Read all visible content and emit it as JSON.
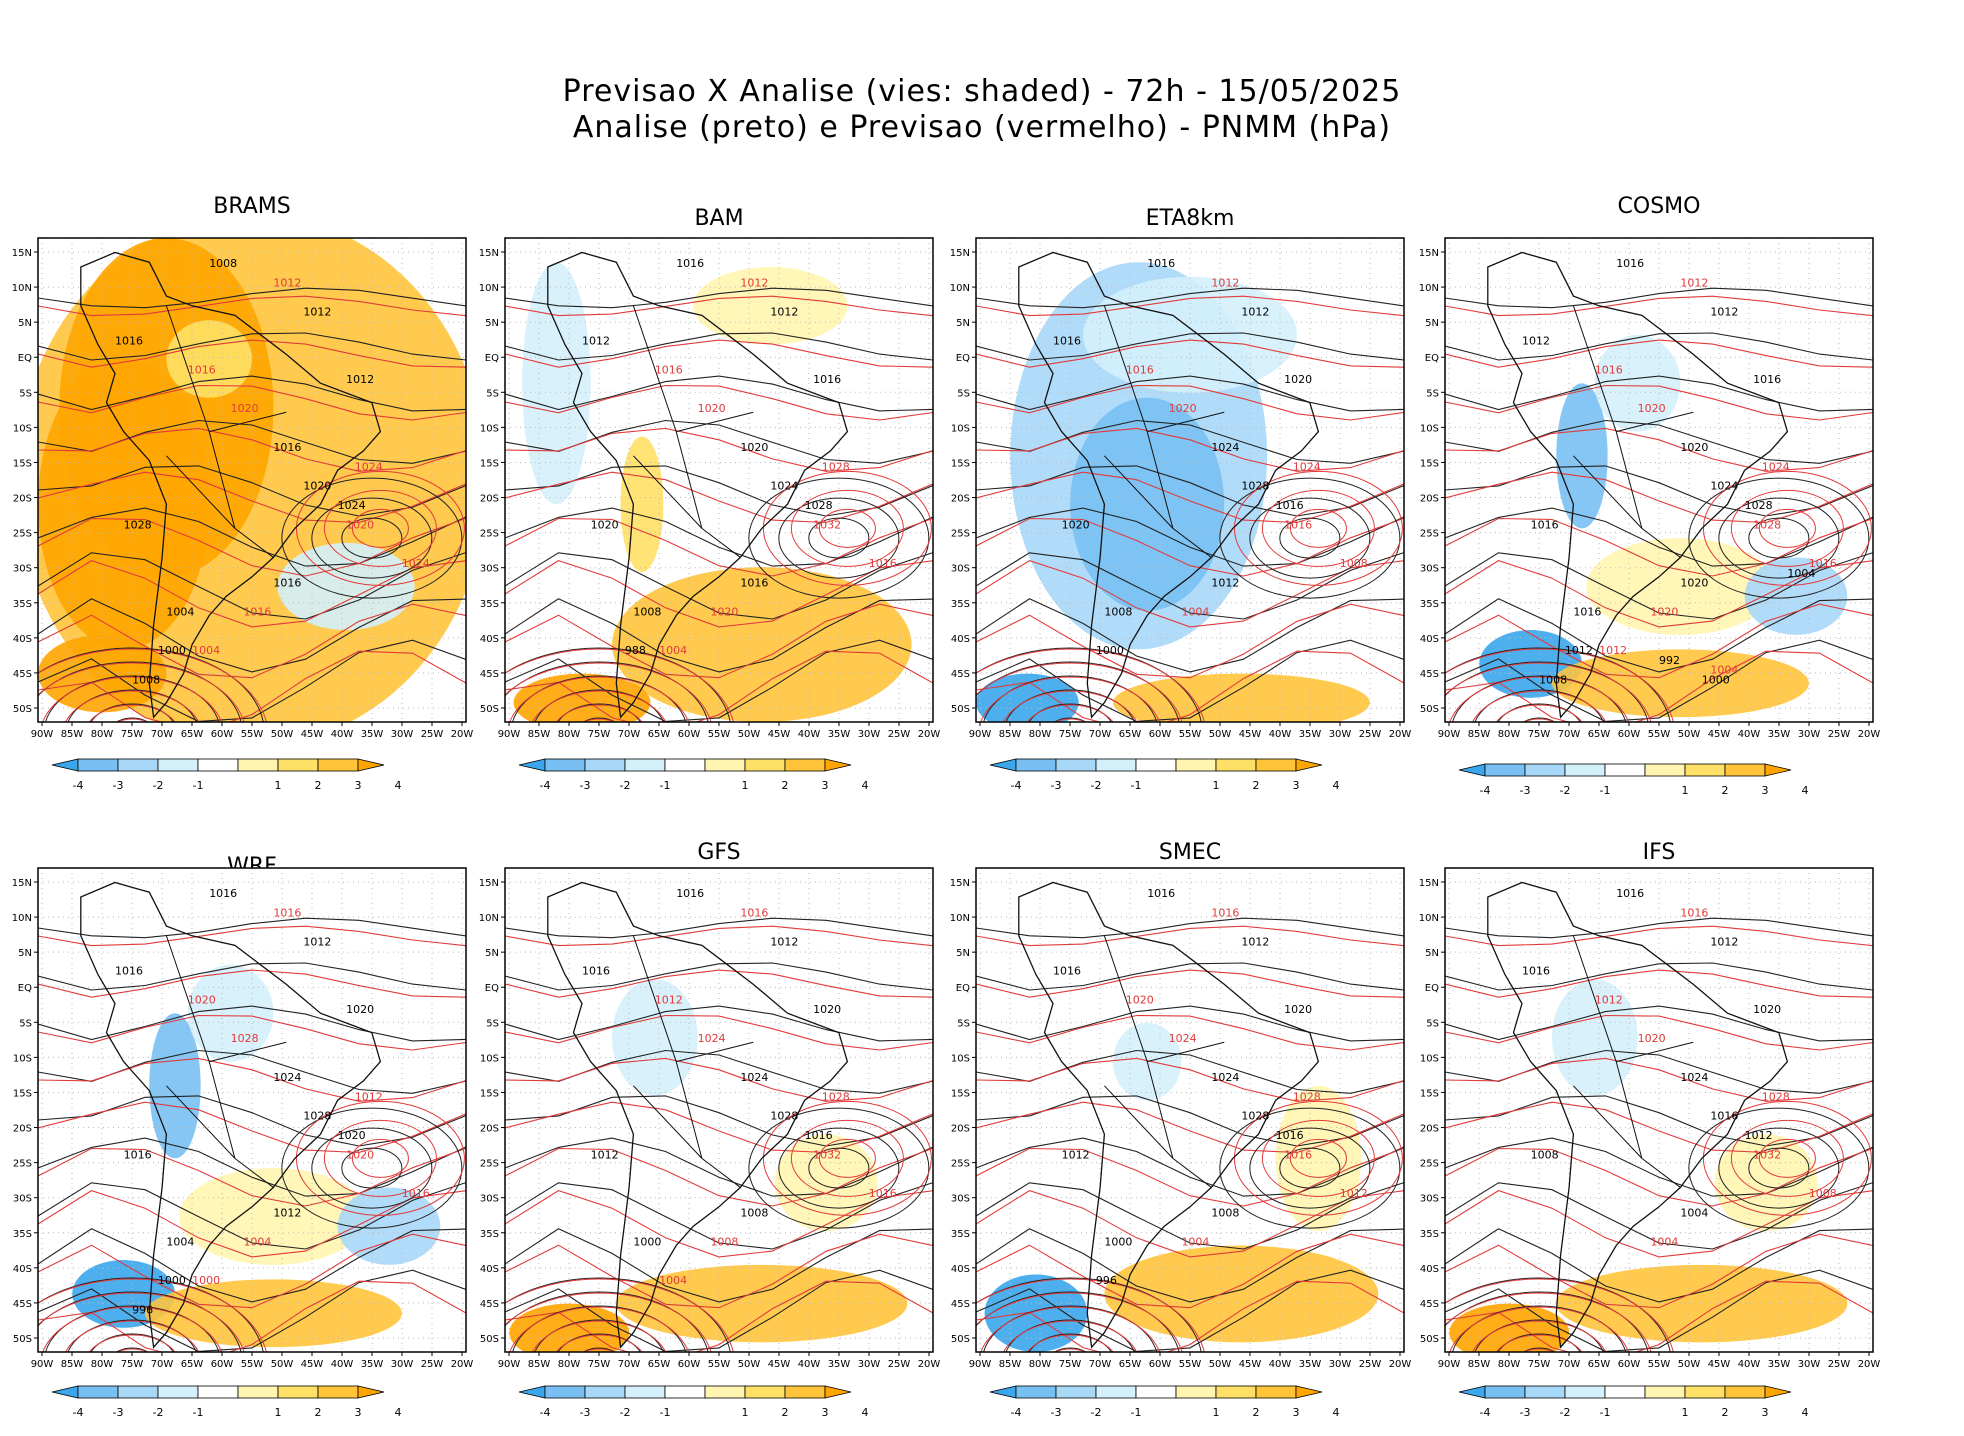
{
  "header": {
    "title_line1": "Previsao X Analise (vies: shaded) - 72h - 15/05/2025",
    "title_line2": "Analise (preto) e Previsao (vermelho) - PNMM (hPa)"
  },
  "axes": {
    "lat_labels": [
      "15N",
      "10N",
      "5N",
      "EQ",
      "5S",
      "10S",
      "15S",
      "20S",
      "25S",
      "30S",
      "35S",
      "40S",
      "45S",
      "50S"
    ],
    "lon_labels": [
      "90W",
      "85W",
      "80W",
      "75W",
      "70W",
      "65W",
      "60W",
      "55W",
      "50W",
      "45W",
      "40W",
      "35W",
      "30W",
      "25W",
      "20W"
    ]
  },
  "colorbar": {
    "ticks": [
      "-4",
      "-3",
      "-2",
      "-1",
      "1",
      "2",
      "3",
      "4"
    ],
    "colors": [
      "#3ba6ec",
      "#78c0f3",
      "#a8d8f8",
      "#d4f0fb",
      "#ffffff",
      "#fff5b0",
      "#ffe066",
      "#ffc43a",
      "#ffa500"
    ]
  },
  "contour_labels": {
    "analysis_color": "#000000",
    "forecast_color": "#e23a3a",
    "values": [
      "1000",
      "1004",
      "1008",
      "1012",
      "1016",
      "1020",
      "1024",
      "1028",
      "1032"
    ]
  },
  "panels": [
    {
      "name": "BRAMS",
      "bias": "warm-strong",
      "labels_black": [
        "1008",
        "1012",
        "1016",
        "1012",
        "1016",
        "1020",
        "1024",
        "1028",
        "1016",
        "1004",
        "1000",
        "1008"
      ],
      "labels_red": [
        "1012",
        "1016",
        "1020",
        "1024",
        "1020",
        "1024",
        "1016",
        "1004"
      ]
    },
    {
      "name": "BAM",
      "bias": "mixed",
      "labels_black": [
        "1016",
        "1012",
        "1012",
        "1016",
        "1020",
        "1024",
        "1028",
        "1020",
        "1016",
        "1008",
        "988"
      ],
      "labels_red": [
        "1012",
        "1016",
        "1020",
        "1028",
        "1032",
        "1016",
        "1020",
        "1004"
      ]
    },
    {
      "name": "ETA8km",
      "bias": "cold",
      "labels_black": [
        "1016",
        "1012",
        "1016",
        "1020",
        "1024",
        "1028",
        "1016",
        "1020",
        "1012",
        "1008",
        "1000"
      ],
      "labels_red": [
        "1012",
        "1016",
        "1020",
        "1024",
        "1016",
        "1008",
        "1004"
      ]
    },
    {
      "name": "COSMO",
      "bias": "warm-south",
      "labels_black": [
        "1016",
        "1012",
        "1012",
        "1016",
        "1020",
        "1024",
        "1028",
        "1016",
        "1020",
        "1016",
        "1012",
        "1008",
        "1004",
        "992",
        "1000"
      ],
      "labels_red": [
        "1012",
        "1016",
        "1020",
        "1024",
        "1028",
        "1016",
        "1020",
        "1012",
        "1004"
      ]
    },
    {
      "name": "WRF",
      "bias": "warm-south",
      "labels_black": [
        "1016",
        "1012",
        "1016",
        "1020",
        "1024",
        "1028",
        "1020",
        "1016",
        "1012",
        "1004",
        "1000",
        "996"
      ],
      "labels_red": [
        "1016",
        "1020",
        "1028",
        "1012",
        "1020",
        "1016",
        "1004",
        "1000"
      ]
    },
    {
      "name": "GFS",
      "bias": "mild",
      "labels_black": [
        "1016",
        "1012",
        "1016",
        "1020",
        "1024",
        "1028",
        "1016",
        "1012",
        "1008",
        "1000"
      ],
      "labels_red": [
        "1016",
        "1012",
        "1024",
        "1028",
        "1032",
        "1016",
        "1008",
        "1004"
      ]
    },
    {
      "name": "SMEC",
      "bias": "mild-warm",
      "labels_black": [
        "1016",
        "1012",
        "1016",
        "1020",
        "1024",
        "1028",
        "1016",
        "1012",
        "1008",
        "1000",
        "996"
      ],
      "labels_red": [
        "1016",
        "1020",
        "1024",
        "1028",
        "1016",
        "1012",
        "1004"
      ]
    },
    {
      "name": "IFS",
      "bias": "mild",
      "labels_black": [
        "1016",
        "1012",
        "1016",
        "1020",
        "1024",
        "1016",
        "1012",
        "1008",
        "1004"
      ],
      "labels_red": [
        "1016",
        "1012",
        "1020",
        "1028",
        "1032",
        "1008",
        "1004"
      ]
    }
  ]
}
